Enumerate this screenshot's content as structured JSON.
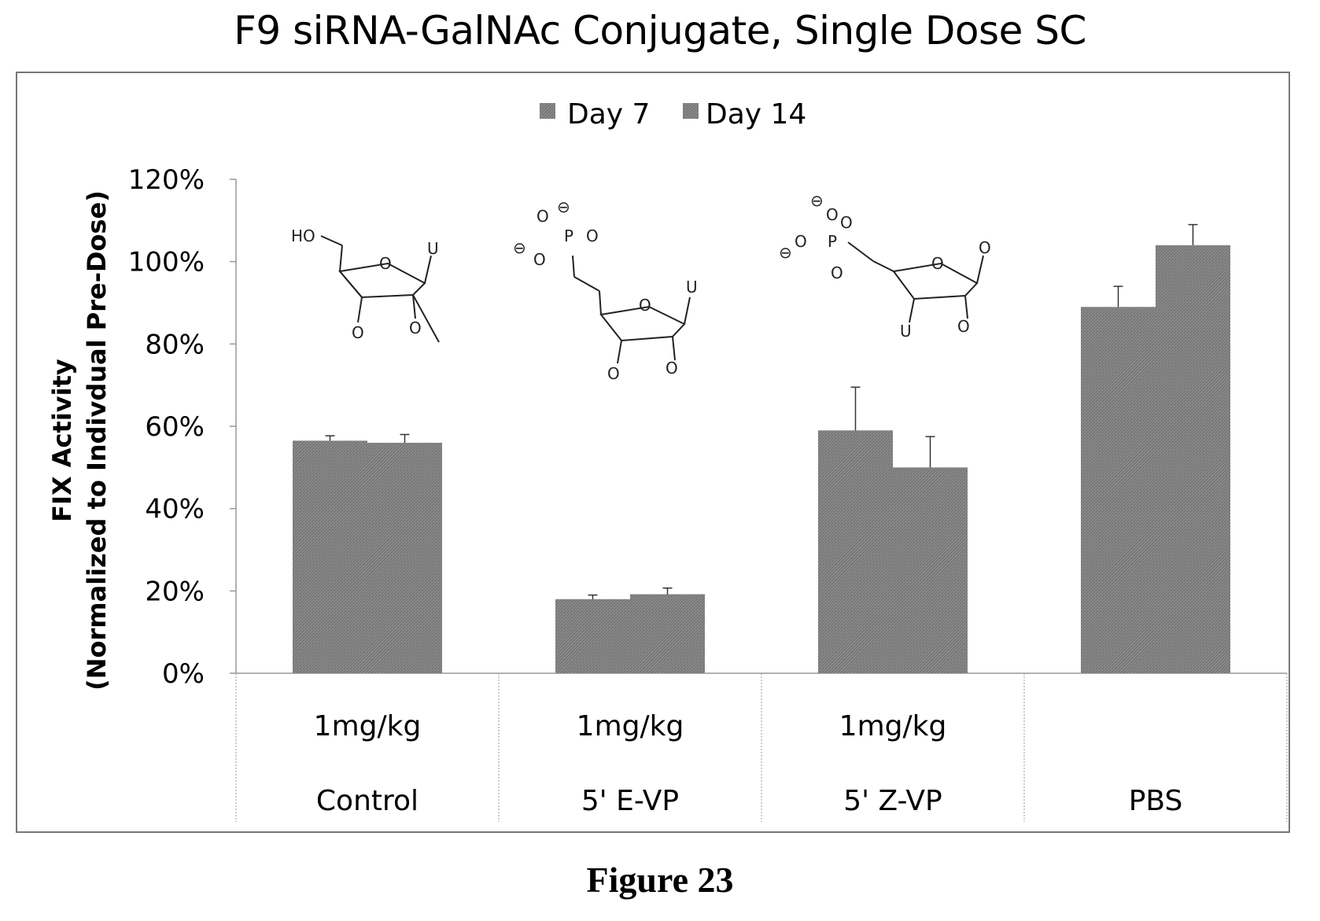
{
  "chart_data": {
    "type": "bar",
    "title": "F9 siRNA-GalNAc Conjugate, Single Dose SC",
    "ylabel_line1": "FIX Activity",
    "ylabel_line2": "(Normalized to Indivdual Pre-Dose)",
    "ylim": [
      0,
      120
    ],
    "yticks": [
      "0%",
      "20%",
      "40%",
      "60%",
      "80%",
      "100%",
      "120%"
    ],
    "grid": false,
    "legend_position": "top-center",
    "categories": [
      {
        "dose": "1mg/kg",
        "name": "Control"
      },
      {
        "dose": "1mg/kg",
        "name": "5' E-VP"
      },
      {
        "dose": "1mg/kg",
        "name": "5' Z-VP"
      },
      {
        "dose": "",
        "name": "PBS"
      }
    ],
    "series": [
      {
        "name": "Day 7",
        "values": [
          56.5,
          18,
          59,
          89
        ],
        "errors": [
          1.2,
          1,
          10.5,
          5
        ],
        "color": "#8c8c8c"
      },
      {
        "name": "Day 14",
        "values": [
          56,
          19.2,
          50,
          104
        ],
        "errors": [
          2,
          1.5,
          7.5,
          5
        ],
        "color": "#7a7a7a"
      }
    ],
    "structures": [
      {
        "labels": [
          "HO",
          "O",
          "U",
          "O",
          "O"
        ]
      },
      {
        "labels": [
          "O",
          "⊖",
          "P",
          "O",
          "⊖",
          "O",
          "O",
          "U",
          "O",
          "O"
        ]
      },
      {
        "labels": [
          "⊖",
          "O",
          "O",
          "P",
          "O",
          "⊖",
          "O",
          "O",
          "U",
          "O",
          "O"
        ]
      }
    ]
  },
  "caption": "Figure 23"
}
